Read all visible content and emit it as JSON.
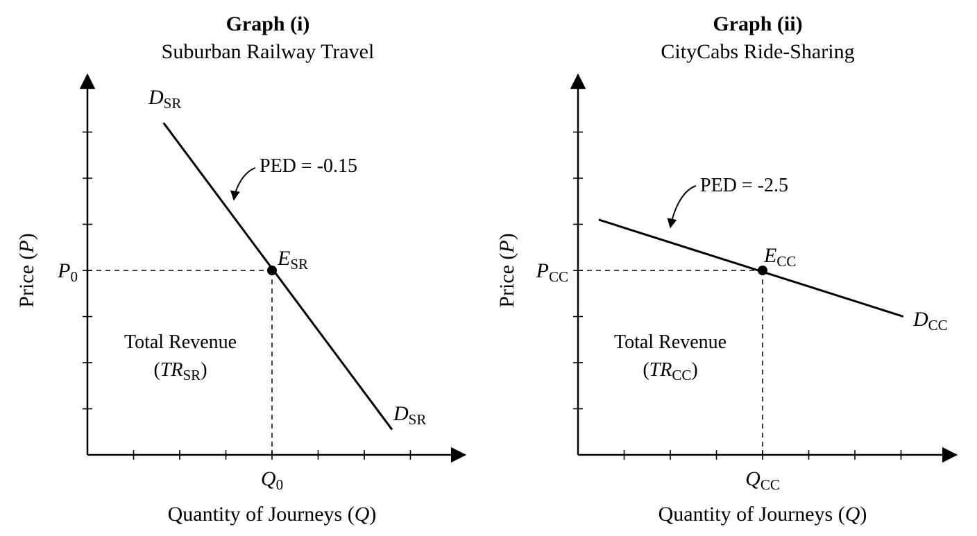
{
  "chart_data": [
    {
      "type": "line",
      "title": "Graph (i)",
      "subtitle": "Suburban Railway Travel",
      "xlabel": "Quantity of Journeys",
      "xlabel_symbol": "Q",
      "ylabel": "Price",
      "ylabel_symbol": "P",
      "x_ticks": 7,
      "y_ticks": 7,
      "grid": false,
      "series": [
        {
          "name": "DSR",
          "label_main": "D",
          "label_sub": "SR",
          "x": [
            1.65,
            6.6
          ],
          "y": [
            7.2,
            0.55
          ]
        }
      ],
      "equilibrium": {
        "label_main": "E",
        "label_sub": "SR",
        "x": 4,
        "y": 4,
        "price_label_main": "P",
        "price_label_sub": "0",
        "quantity_label_main": "Q",
        "quantity_label_sub": "0"
      },
      "annotation": "PED = -0.15",
      "area_label_line1": "Total Revenue",
      "area_label_main": "TR",
      "area_label_sub": "SR"
    },
    {
      "type": "line",
      "title": "Graph (ii)",
      "subtitle": "CityCabs Ride-Sharing",
      "xlabel": "Quantity of Journeys",
      "xlabel_symbol": "Q",
      "ylabel": "Price",
      "ylabel_symbol": "P",
      "x_ticks": 7,
      "y_ticks": 7,
      "grid": false,
      "series": [
        {
          "name": "DCC",
          "label_main": "D",
          "label_sub": "CC",
          "x": [
            0.45,
            7.05
          ],
          "y": [
            5.1,
            3
          ]
        }
      ],
      "equilibrium": {
        "label_main": "E",
        "label_sub": "CC",
        "x": 4,
        "y": 4,
        "price_label_main": "P",
        "price_label_sub": "CC",
        "quantity_label_main": "Q",
        "quantity_label_sub": "CC"
      },
      "annotation": "PED = -2.5",
      "area_label_line1": "Total Revenue",
      "area_label_main": "TR",
      "area_label_sub": "CC"
    }
  ]
}
